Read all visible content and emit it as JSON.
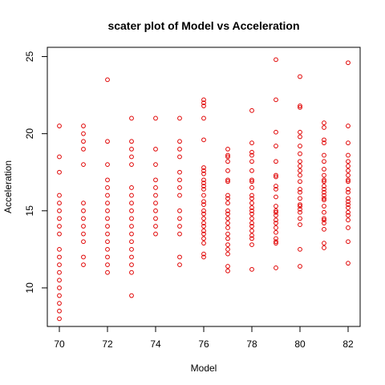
{
  "chart_data": {
    "type": "scatter",
    "title": "scater plot of Model vs Acceleration",
    "xlabel": "Model",
    "ylabel": "Acceleration",
    "xlim": [
      69.5,
      82.5
    ],
    "ylim": [
      7.5,
      25.6
    ],
    "x_ticks": [
      70,
      72,
      74,
      76,
      78,
      80,
      82
    ],
    "y_ticks": [
      10,
      15,
      20,
      25
    ],
    "point_color": "#e00000",
    "grid": false,
    "points": [
      [
        70,
        20.5
      ],
      [
        70,
        18.5
      ],
      [
        70,
        17.5
      ],
      [
        70,
        16.0
      ],
      [
        70,
        15.5
      ],
      [
        70,
        15.0
      ],
      [
        70,
        14.5
      ],
      [
        70,
        14.0
      ],
      [
        70,
        13.5
      ],
      [
        70,
        12.5
      ],
      [
        70,
        12.0
      ],
      [
        70,
        11.5
      ],
      [
        70,
        11.0
      ],
      [
        70,
        10.5
      ],
      [
        70,
        10.0
      ],
      [
        70,
        9.5
      ],
      [
        70,
        9.0
      ],
      [
        70,
        8.5
      ],
      [
        70,
        8.0
      ],
      [
        71,
        20.5
      ],
      [
        71,
        20.0
      ],
      [
        71,
        19.5
      ],
      [
        71,
        19.0
      ],
      [
        71,
        18.0
      ],
      [
        71,
        15.5
      ],
      [
        71,
        15.0
      ],
      [
        71,
        14.5
      ],
      [
        71,
        14.0
      ],
      [
        71,
        13.5
      ],
      [
        71,
        13.0
      ],
      [
        71,
        12.0
      ],
      [
        71,
        11.5
      ],
      [
        72,
        23.5
      ],
      [
        72,
        19.5
      ],
      [
        72,
        18.0
      ],
      [
        72,
        17.0
      ],
      [
        72,
        16.5
      ],
      [
        72,
        16.0
      ],
      [
        72,
        15.5
      ],
      [
        72,
        15.0
      ],
      [
        72,
        14.5
      ],
      [
        72,
        14.0
      ],
      [
        72,
        13.5
      ],
      [
        72,
        13.0
      ],
      [
        72,
        12.5
      ],
      [
        72,
        12.0
      ],
      [
        72,
        11.5
      ],
      [
        72,
        11.0
      ],
      [
        73,
        21.0
      ],
      [
        73,
        19.5
      ],
      [
        73,
        19.0
      ],
      [
        73,
        18.5
      ],
      [
        73,
        18.0
      ],
      [
        73,
        16.5
      ],
      [
        73,
        16.0
      ],
      [
        73,
        15.5
      ],
      [
        73,
        15.0
      ],
      [
        73,
        14.5
      ],
      [
        73,
        14.0
      ],
      [
        73,
        13.5
      ],
      [
        73,
        13.0
      ],
      [
        73,
        12.5
      ],
      [
        73,
        12.0
      ],
      [
        73,
        11.5
      ],
      [
        73,
        11.0
      ],
      [
        73,
        9.5
      ],
      [
        74,
        21.0
      ],
      [
        74,
        19.0
      ],
      [
        74,
        18.0
      ],
      [
        74,
        17.0
      ],
      [
        74,
        16.5
      ],
      [
        74,
        16.0
      ],
      [
        74,
        15.5
      ],
      [
        74,
        15.0
      ],
      [
        74,
        14.5
      ],
      [
        74,
        14.0
      ],
      [
        74,
        13.5
      ],
      [
        75,
        21.0
      ],
      [
        75,
        19.5
      ],
      [
        75,
        19.0
      ],
      [
        75,
        18.5
      ],
      [
        75,
        17.5
      ],
      [
        75,
        17.0
      ],
      [
        75,
        16.5
      ],
      [
        75,
        16.0
      ],
      [
        75,
        15.0
      ],
      [
        75,
        14.5
      ],
      [
        75,
        14.0
      ],
      [
        75,
        13.5
      ],
      [
        75,
        12.0
      ],
      [
        75,
        11.5
      ],
      [
        76,
        22.2
      ],
      [
        76,
        22.0
      ],
      [
        76,
        21.8
      ],
      [
        76,
        21.0
      ],
      [
        76,
        19.6
      ],
      [
        76,
        17.8
      ],
      [
        76,
        17.6
      ],
      [
        76,
        17.4
      ],
      [
        76,
        17.0
      ],
      [
        76,
        16.8
      ],
      [
        76,
        16.6
      ],
      [
        76,
        16.4
      ],
      [
        76,
        16.0
      ],
      [
        76,
        15.6
      ],
      [
        76,
        15.4
      ],
      [
        76,
        15.0
      ],
      [
        76,
        14.8
      ],
      [
        76,
        14.5
      ],
      [
        76,
        14.2
      ],
      [
        76,
        14.0
      ],
      [
        76,
        13.7
      ],
      [
        76,
        13.5
      ],
      [
        76,
        13.2
      ],
      [
        76,
        12.9
      ],
      [
        76,
        12.2
      ],
      [
        76,
        12.0
      ],
      [
        77,
        19.0
      ],
      [
        77,
        18.6
      ],
      [
        77,
        18.5
      ],
      [
        77,
        18.2
      ],
      [
        77,
        17.6
      ],
      [
        77,
        17.0
      ],
      [
        77,
        16.9
      ],
      [
        77,
        16.0
      ],
      [
        77,
        15.8
      ],
      [
        77,
        15.5
      ],
      [
        77,
        15.0
      ],
      [
        77,
        14.8
      ],
      [
        77,
        14.5
      ],
      [
        77,
        14.2
      ],
      [
        77,
        13.9
      ],
      [
        77,
        13.5
      ],
      [
        77,
        13.2
      ],
      [
        77,
        12.8
      ],
      [
        77,
        12.5
      ],
      [
        77,
        12.2
      ],
      [
        77,
        11.4
      ],
      [
        77,
        11.1
      ],
      [
        78,
        21.5
      ],
      [
        78,
        19.4
      ],
      [
        78,
        18.8
      ],
      [
        78,
        18.6
      ],
      [
        78,
        18.2
      ],
      [
        78,
        17.6
      ],
      [
        78,
        17.0
      ],
      [
        78,
        16.9
      ],
      [
        78,
        16.5
      ],
      [
        78,
        16.0
      ],
      [
        78,
        15.8
      ],
      [
        78,
        15.5
      ],
      [
        78,
        15.2
      ],
      [
        78,
        15.0
      ],
      [
        78,
        14.8
      ],
      [
        78,
        14.5
      ],
      [
        78,
        14.2
      ],
      [
        78,
        14.0
      ],
      [
        78,
        13.7
      ],
      [
        78,
        13.4
      ],
      [
        78,
        13.2
      ],
      [
        78,
        12.8
      ],
      [
        78,
        11.2
      ],
      [
        79,
        24.8
      ],
      [
        79,
        22.2
      ],
      [
        79,
        20.1
      ],
      [
        79,
        19.2
      ],
      [
        79,
        18.2
      ],
      [
        79,
        17.3
      ],
      [
        79,
        17.2
      ],
      [
        79,
        16.6
      ],
      [
        79,
        16.4
      ],
      [
        79,
        15.9
      ],
      [
        79,
        15.3
      ],
      [
        79,
        15.0
      ],
      [
        79,
        14.9
      ],
      [
        79,
        14.7
      ],
      [
        79,
        14.4
      ],
      [
        79,
        14.2
      ],
      [
        79,
        13.9
      ],
      [
        79,
        13.6
      ],
      [
        79,
        13.2
      ],
      [
        79,
        13.0
      ],
      [
        79,
        12.9
      ],
      [
        79,
        11.3
      ],
      [
        80,
        23.7
      ],
      [
        80,
        21.8
      ],
      [
        80,
        21.7
      ],
      [
        80,
        20.1
      ],
      [
        80,
        19.8
      ],
      [
        80,
        19.2
      ],
      [
        80,
        18.7
      ],
      [
        80,
        18.2
      ],
      [
        80,
        17.9
      ],
      [
        80,
        17.6
      ],
      [
        80,
        17.3
      ],
      [
        80,
        16.9
      ],
      [
        80,
        16.4
      ],
      [
        80,
        16.2
      ],
      [
        80,
        15.8
      ],
      [
        80,
        15.4
      ],
      [
        80,
        15.3
      ],
      [
        80,
        15.1
      ],
      [
        80,
        14.9
      ],
      [
        80,
        14.5
      ],
      [
        80,
        14.1
      ],
      [
        80,
        12.5
      ],
      [
        80,
        11.4
      ],
      [
        81,
        20.7
      ],
      [
        81,
        20.4
      ],
      [
        81,
        19.6
      ],
      [
        81,
        19.4
      ],
      [
        81,
        18.6
      ],
      [
        81,
        18.2
      ],
      [
        81,
        17.7
      ],
      [
        81,
        17.3
      ],
      [
        81,
        17.0
      ],
      [
        81,
        16.9
      ],
      [
        81,
        16.6
      ],
      [
        81,
        16.4
      ],
      [
        81,
        16.2
      ],
      [
        81,
        16.0
      ],
      [
        81,
        15.8
      ],
      [
        81,
        15.7
      ],
      [
        81,
        15.3
      ],
      [
        81,
        14.9
      ],
      [
        81,
        14.5
      ],
      [
        81,
        14.4
      ],
      [
        81,
        14.2
      ],
      [
        81,
        13.8
      ],
      [
        81,
        12.9
      ],
      [
        81,
        12.6
      ],
      [
        82,
        24.6
      ],
      [
        82,
        20.5
      ],
      [
        82,
        19.4
      ],
      [
        82,
        18.6
      ],
      [
        82,
        18.2
      ],
      [
        82,
        17.9
      ],
      [
        82,
        17.6
      ],
      [
        82,
        17.3
      ],
      [
        82,
        17.0
      ],
      [
        82,
        16.9
      ],
      [
        82,
        16.4
      ],
      [
        82,
        16.2
      ],
      [
        82,
        15.8
      ],
      [
        82,
        15.6
      ],
      [
        82,
        15.4
      ],
      [
        82,
        15.2
      ],
      [
        82,
        14.9
      ],
      [
        82,
        14.7
      ],
      [
        82,
        14.4
      ],
      [
        82,
        13.9
      ],
      [
        82,
        13.0
      ],
      [
        82,
        11.6
      ]
    ]
  }
}
